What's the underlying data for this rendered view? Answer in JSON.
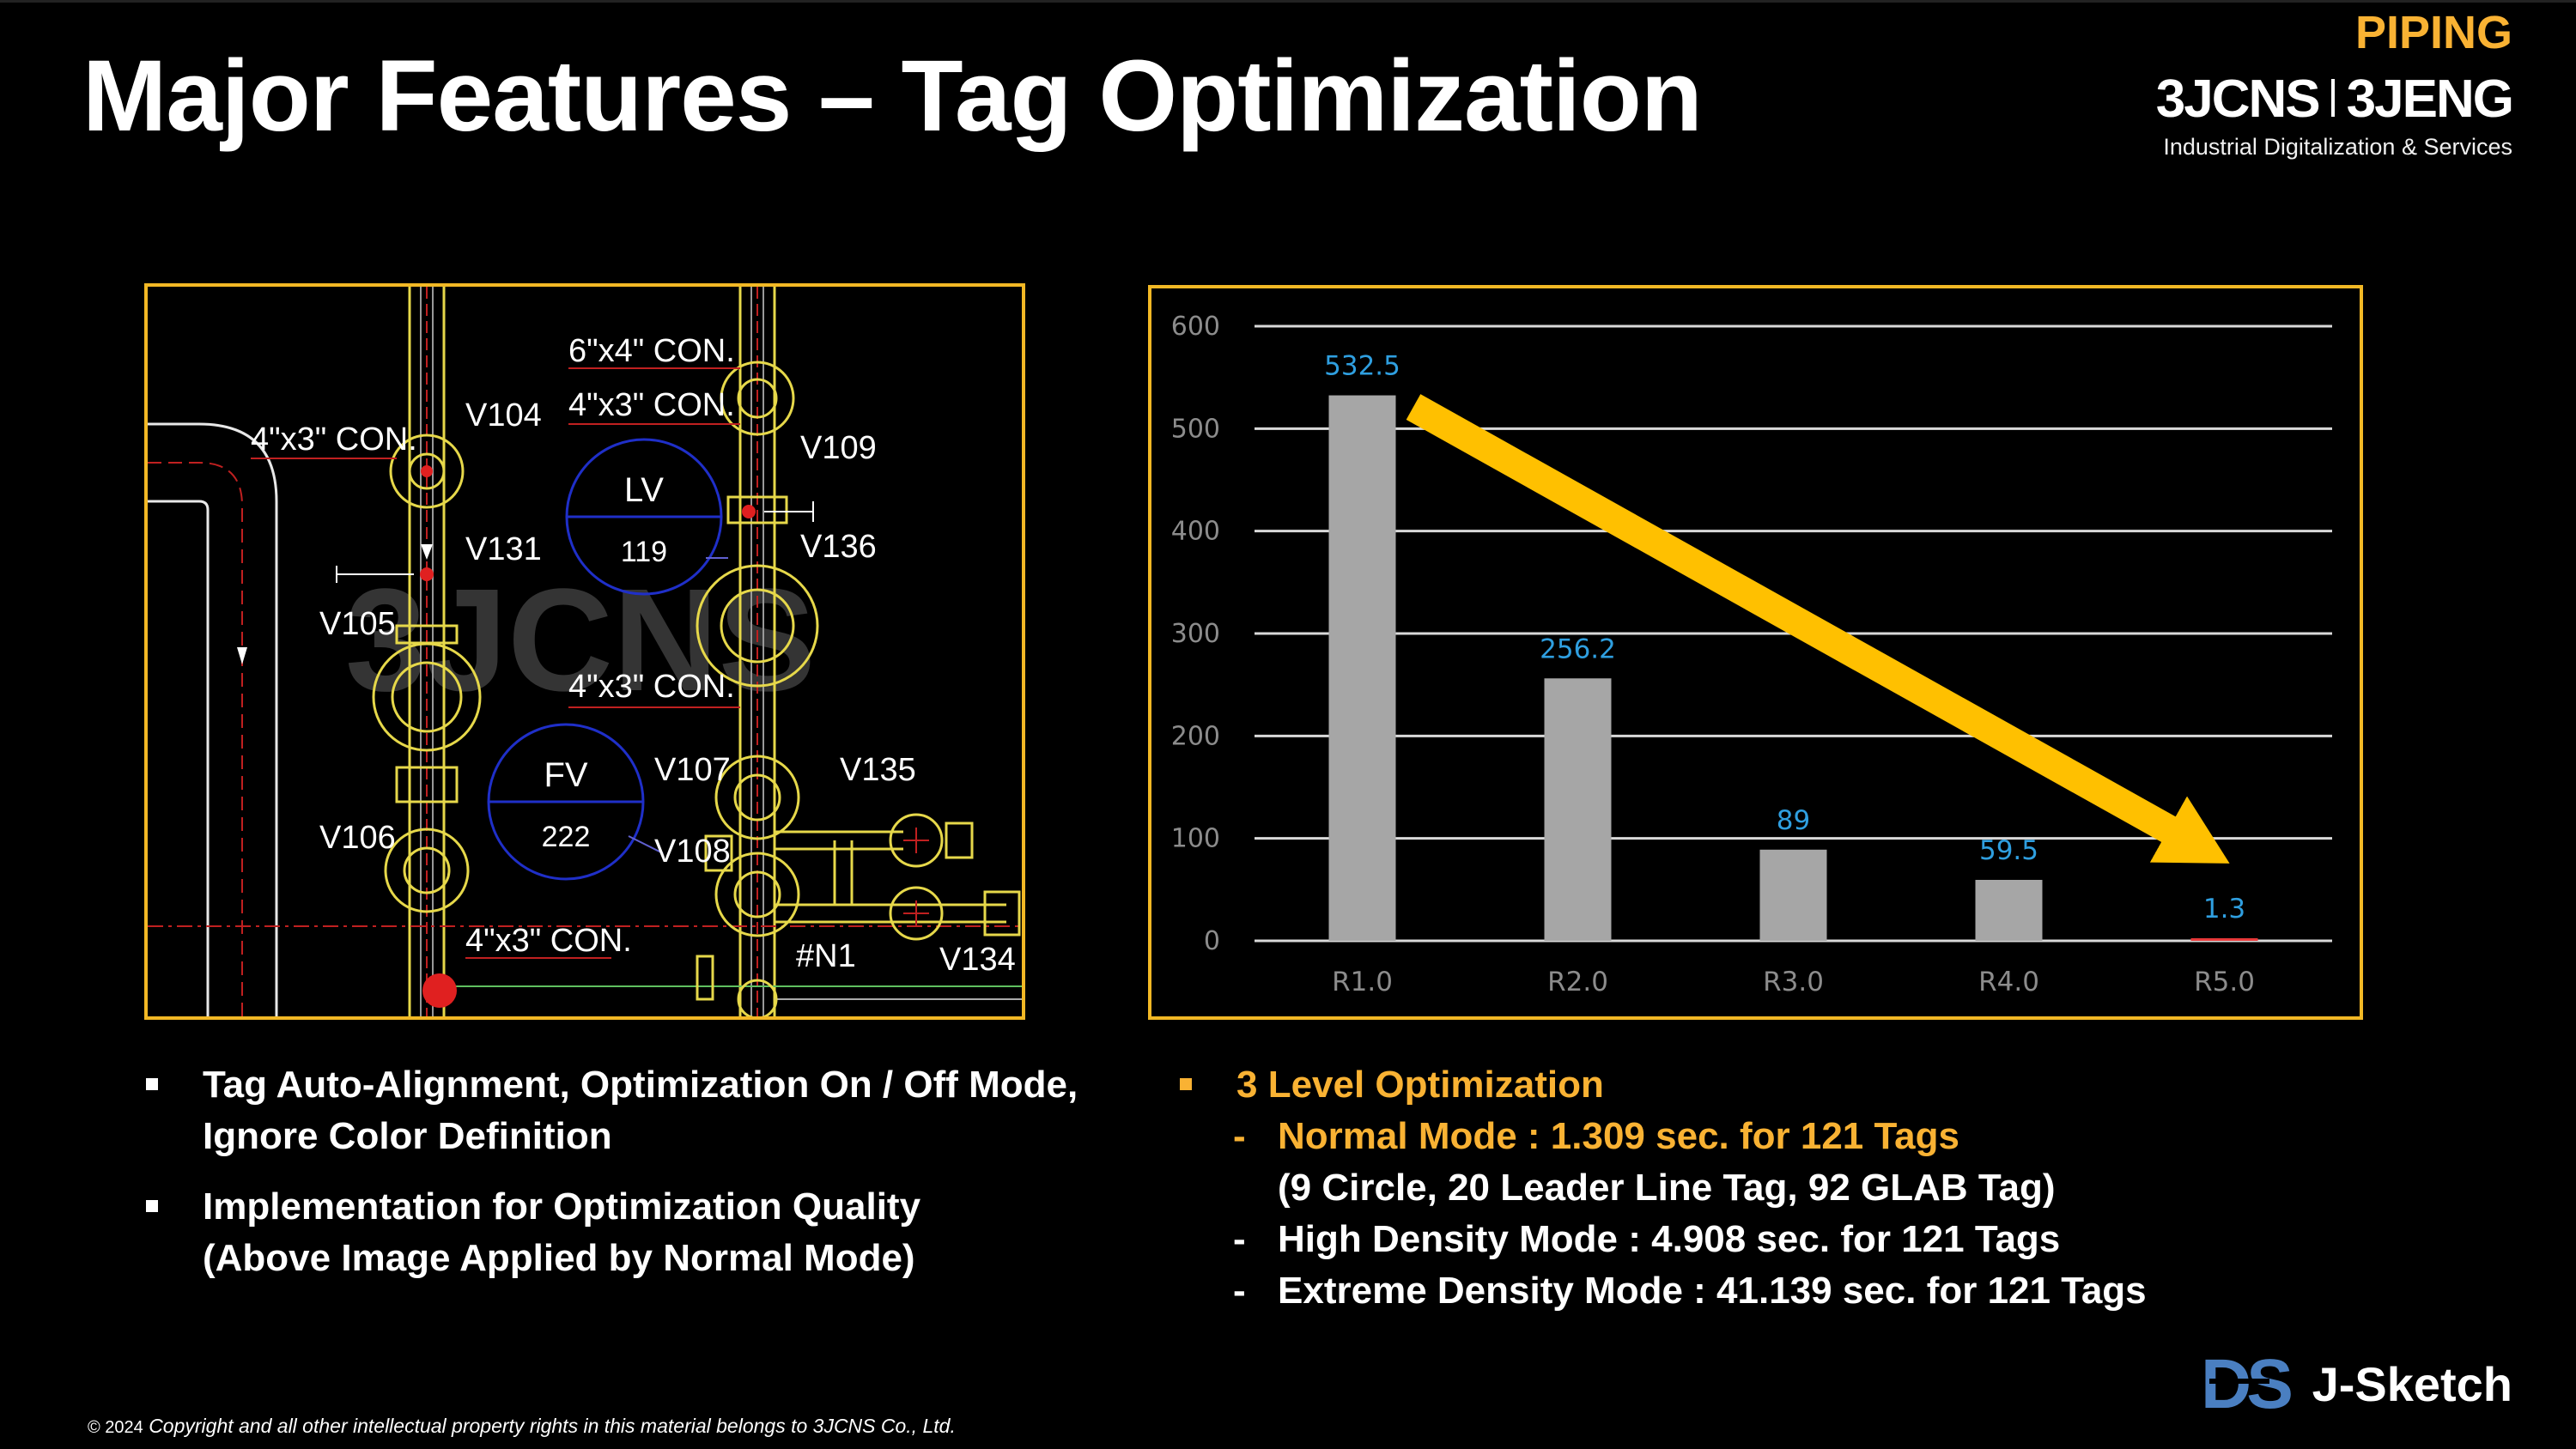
{
  "header": {
    "title": "Major Features – Tag Optimization",
    "category": "PIPING",
    "brand_left": "3JCNS",
    "brand_right": "3JENG",
    "brand_tagline": "Industrial Digitalization & Services"
  },
  "drawing": {
    "tags": {
      "con_6x4": "6\"x4\" CON.",
      "con_4x3_top": "4\"x3\" CON.",
      "con_4x3_left": "4\"x3\" CON.",
      "con_4x3_mid": "4\"x3\" CON.",
      "con_4x3_bottom": "4\"x3\" CON.",
      "v104": "V104",
      "v109": "V109",
      "v131": "V131",
      "v136": "V136",
      "v105": "V105",
      "v107": "V107",
      "v135": "V135",
      "v106": "V106",
      "v108": "V108",
      "v134": "V134",
      "n1": "#N1",
      "lv_label": "LV",
      "lv_num": "119",
      "fv_label": "FV",
      "fv_num": "222"
    },
    "watermark": "3JCNS"
  },
  "chart_data": {
    "type": "bar",
    "categories": [
      "R1.0",
      "R2.0",
      "R3.0",
      "R4.0",
      "R5.0"
    ],
    "values": [
      532.5,
      256.2,
      89,
      59.5,
      1.3
    ],
    "data_labels": [
      "532.5",
      "256.2",
      "89",
      "59.5",
      "1.3"
    ],
    "yticks": [
      0,
      100,
      200,
      300,
      400,
      500,
      600
    ],
    "ylim": [
      0,
      600
    ],
    "grid": true,
    "bar_color": "#a6a6a6",
    "last_bar_color": "#e8393a",
    "label_color": "#2f9fe0",
    "trend_arrow_color": "#ffc000"
  },
  "left_bullets": [
    {
      "lines": [
        "Tag Auto-Alignment, Optimization On / Off Mode,",
        "Ignore Color Definition"
      ]
    },
    {
      "lines": [
        "Implementation for Optimization Quality",
        "(Above Image Applied by Normal Mode)"
      ]
    }
  ],
  "right_bullets": {
    "heading": "3 Level Optimization",
    "dash": "-",
    "normal": "Normal Mode : 1.309 sec. for 121 Tags",
    "normal_detail": "(9 Circle, 20 Leader Line Tag, 92 GLAB Tag)",
    "high": "High Density Mode : 4.908 sec. for 121 Tags",
    "extreme": "Extreme Density Mode : 41.139 sec. for 121 Tags"
  },
  "footer": {
    "copyright_year": "© 2024",
    "copyright_text": "Copyright and all other intellectual property rights in this material belongs to 3JCNS Co., Ltd.",
    "product_logo": "DS",
    "product_name": "J-Sketch"
  }
}
